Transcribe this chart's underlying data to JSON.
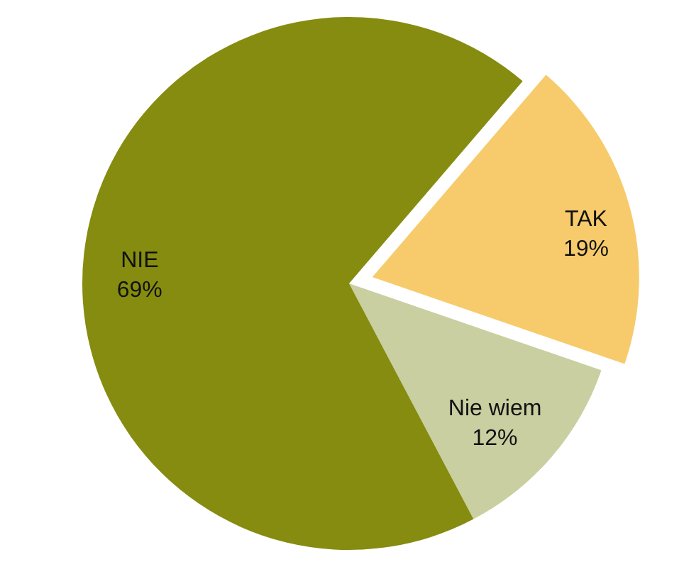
{
  "chart_data": {
    "type": "pie",
    "categories": [
      "TAK",
      "Nie wiem",
      "NIE"
    ],
    "values": [
      19,
      12,
      69
    ],
    "colors": [
      "#f7cb6b",
      "#c9cfa0",
      "#858c0f"
    ],
    "value_labels": [
      "19%",
      "12%",
      "69%"
    ]
  }
}
